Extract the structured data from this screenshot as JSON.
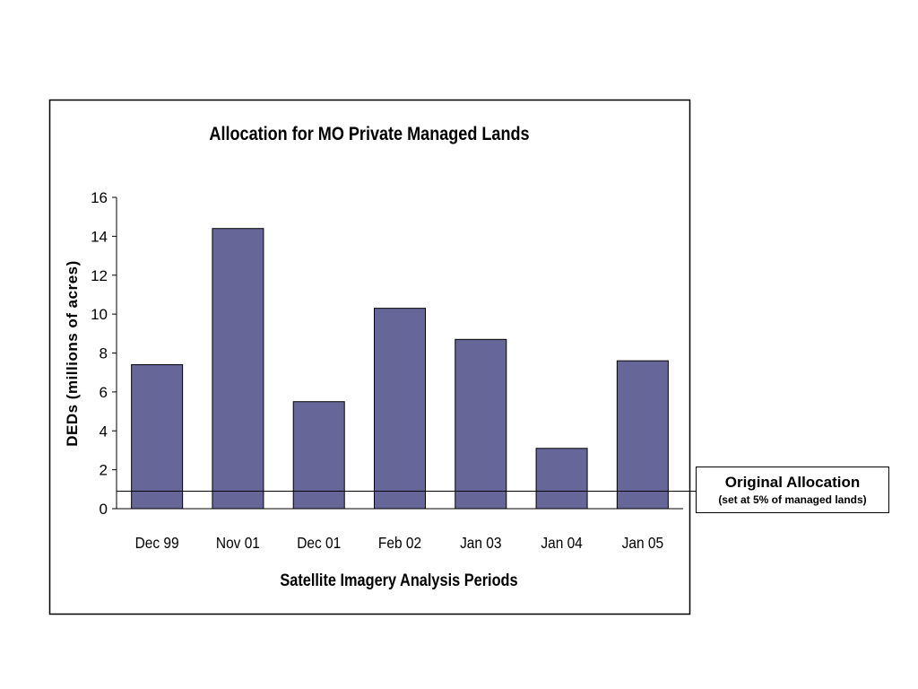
{
  "chart_data": {
    "type": "bar",
    "title": "Allocation for MO Private Managed Lands",
    "xlabel": "Satellite Imagery Analysis Periods",
    "ylabel": "DEDs (millions of acres)",
    "categories": [
      "Dec 99",
      "Nov 01",
      "Dec 01",
      "Feb 02",
      "Jan 03",
      "Jan 04",
      "Jan 05"
    ],
    "values": [
      7.4,
      14.4,
      5.5,
      10.3,
      8.7,
      3.1,
      7.6
    ],
    "ylim": [
      0,
      16
    ],
    "yticks": [
      0,
      2,
      4,
      6,
      8,
      10,
      12,
      14,
      16
    ],
    "reference_line": {
      "value": 0.9
    },
    "bar_color": "#666699",
    "grid": false
  },
  "callout": {
    "title": "Original Allocation",
    "subtitle": "(set at 5% of managed lands)"
  }
}
